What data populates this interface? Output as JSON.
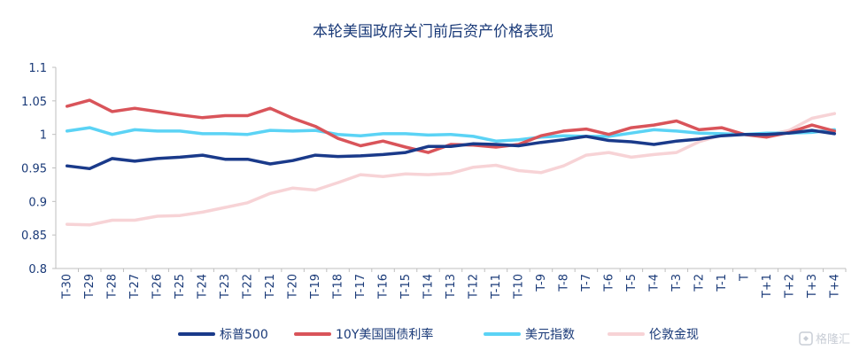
{
  "chart_data": {
    "type": "line",
    "title": "本轮美国政府关门前后资产价格表现",
    "xlabel": "",
    "ylabel": "",
    "ylim": [
      0.8,
      1.1
    ],
    "yticks": [
      "0.8",
      "0.85",
      "0.9",
      "0.95",
      "1",
      "1.05",
      "1.1"
    ],
    "grid": false,
    "legend_position": "bottom",
    "categories": [
      "T-30",
      "T-29",
      "T-28",
      "T-27",
      "T-26",
      "T-25",
      "T-24",
      "T-23",
      "T-22",
      "T-21",
      "T-20",
      "T-19",
      "T-18",
      "T-17",
      "T-16",
      "T-15",
      "T-14",
      "T-13",
      "T-12",
      "T-11",
      "T-10",
      "T-9",
      "T-8",
      "T-7",
      "T-6",
      "T-5",
      "T-4",
      "T-3",
      "T-2",
      "T-1",
      "T",
      "T+1",
      "T+2",
      "T+3",
      "T+4"
    ],
    "series": [
      {
        "name": "标普500",
        "color": "#1a3a8a",
        "values": [
          0.953,
          0.949,
          0.964,
          0.96,
          0.964,
          0.966,
          0.969,
          0.963,
          0.963,
          0.956,
          0.961,
          0.969,
          0.967,
          0.968,
          0.97,
          0.973,
          0.982,
          0.982,
          0.986,
          0.985,
          0.983,
          0.988,
          0.992,
          0.997,
          0.991,
          0.989,
          0.985,
          0.99,
          0.993,
          0.998,
          1.0,
          1.0,
          1.002,
          1.006,
          1.001
        ]
      },
      {
        "name": "10Y美国国债利率",
        "color": "#d9545a",
        "values": [
          1.042,
          1.051,
          1.034,
          1.039,
          1.034,
          1.029,
          1.025,
          1.028,
          1.028,
          1.039,
          1.024,
          1.012,
          0.994,
          0.983,
          0.99,
          0.981,
          0.973,
          0.985,
          0.984,
          0.981,
          0.985,
          0.998,
          1.005,
          1.008,
          1.0,
          1.01,
          1.014,
          1.02,
          1.007,
          1.01,
          1.0,
          0.996,
          1.003,
          1.014,
          1.005
        ]
      },
      {
        "name": "美元指数",
        "color": "#5bd3f5",
        "values": [
          1.005,
          1.01,
          1.0,
          1.007,
          1.005,
          1.005,
          1.001,
          1.001,
          1.0,
          1.006,
          1.005,
          1.006,
          1.0,
          0.998,
          1.001,
          1.001,
          0.999,
          1.0,
          0.997,
          0.99,
          0.992,
          0.996,
          0.998,
          0.997,
          0.997,
          1.002,
          1.007,
          1.005,
          1.002,
          1.001,
          1.0,
          1.002,
          1.002,
          1.003,
          1.007
        ]
      },
      {
        "name": "伦敦金现",
        "color": "#f7d3d6",
        "values": [
          0.866,
          0.865,
          0.872,
          0.872,
          0.878,
          0.879,
          0.884,
          0.891,
          0.898,
          0.912,
          0.92,
          0.917,
          0.928,
          0.94,
          0.937,
          0.941,
          0.94,
          0.942,
          0.951,
          0.954,
          0.946,
          0.943,
          0.953,
          0.969,
          0.973,
          0.966,
          0.97,
          0.973,
          0.989,
          0.999,
          1.0,
          0.999,
          1.006,
          1.024,
          1.031
        ]
      }
    ]
  },
  "watermark": "格隆汇"
}
